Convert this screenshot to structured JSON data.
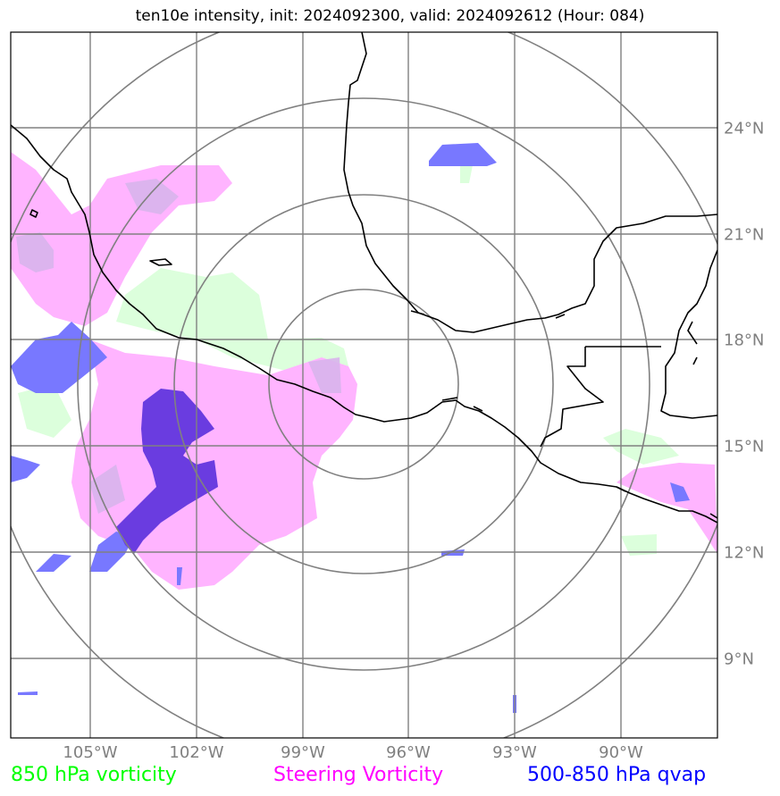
{
  "title": "ten10e intensity, init: 2024092300, valid: 2024092612 (Hour: 084)",
  "lon_labels": [
    "105°W",
    "102°W",
    "99°W",
    "96°W",
    "93°W",
    "90°W"
  ],
  "lat_labels": [
    "24°N",
    "21°N",
    "18°N",
    "15°N",
    "12°N",
    "9°N"
  ],
  "legend": {
    "vort850": {
      "label": "850 hPa vorticity",
      "color": "#00ff00"
    },
    "steering": {
      "label": "Steering Vorticity",
      "color": "#ff00ff"
    },
    "qvap": {
      "label": "500-850 hPa qvap",
      "color": "#0000ff"
    }
  },
  "colors": {
    "grid": "#808080",
    "coast": "#000000",
    "vort_fill": "#dcffdc",
    "steer_fill": "#ffb4ff",
    "qvap_fill": "#7878ff",
    "qvap_dark": "#6a3ce0"
  }
}
